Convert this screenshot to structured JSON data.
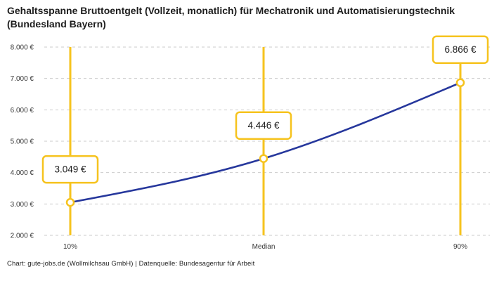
{
  "title": "Gehaltsspanne Bruttoentgelt (Vollzeit, monatlich) für Mechatronik und Automatisierungstechnik (Bundesland Bayern)",
  "footer": "Chart: gute-jobs.de (Wollmilchsau GmbH) | Datenquelle: Bundesagentur für Arbeit",
  "chart_data": {
    "type": "line",
    "title": "Gehaltsspanne Bruttoentgelt (Vollzeit, monatlich) für Mechatronik und Automatisierungstechnik (Bundesland Bayern)",
    "categories": [
      "10%",
      "Median",
      "90%"
    ],
    "values": [
      3049,
      4446,
      6866
    ],
    "value_labels": [
      "3.049 €",
      "4.446 €",
      "6.866 €"
    ],
    "ylim": [
      2000,
      8000
    ],
    "ytick_interval": 1000,
    "ytick_labels": [
      "2.000 €",
      "3.000 €",
      "4.000 €",
      "5.000 €",
      "6.000 €",
      "7.000 €",
      "8.000 €"
    ],
    "grid": "horizontal-dashed",
    "legend": "none",
    "xlabel": "",
    "ylabel": "",
    "colors": {
      "line": "#26379C",
      "accent": "#F6C31E",
      "grid": "#CBCBCB",
      "box_bg": "#FFFFFF",
      "text": "#1D1D1D",
      "tick_text": "#3A3A3A"
    }
  }
}
